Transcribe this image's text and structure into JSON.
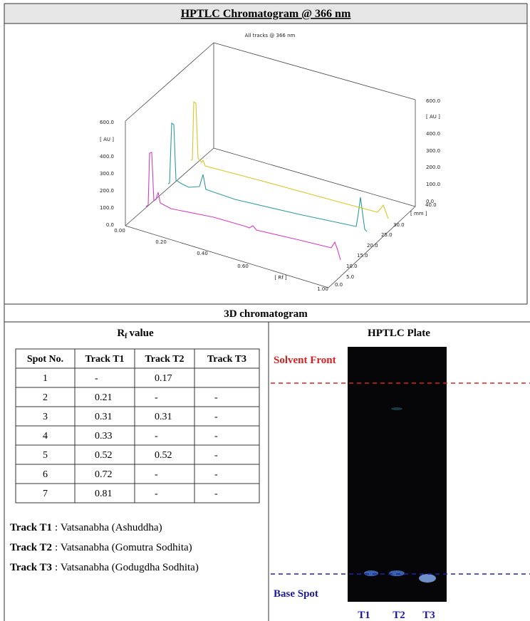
{
  "header": {
    "title": "HPTLC Chromatogram @ 366 nm"
  },
  "chromatogram": {
    "title": "All tracks @ 366 nm",
    "left_axis": [
      "600.0",
      "[ AU ]",
      "400.0",
      "300.0",
      "200.0",
      "100.0",
      "0.0"
    ],
    "right_axis": [
      "600.0",
      "[ AU ]",
      "400.0",
      "300.0",
      "200.0",
      "100.0",
      "0.0"
    ],
    "rf_axis": [
      "0.00",
      "0.20",
      "0.40",
      "0.60",
      "[ Rf ]",
      "1.00"
    ],
    "mm_axis": [
      "0.0",
      "5.0",
      "10.0",
      "15.0",
      "20.0",
      "25.0",
      "30.0",
      "[ mm ]",
      "40.0"
    ]
  },
  "caption": "3D chromatogram",
  "rf_table": {
    "title": {
      "main": "R",
      "subscript": "f",
      "rest": "value"
    },
    "headers": [
      "Spot No.",
      "Track T1",
      "Track T2",
      "Track T3"
    ],
    "rows": [
      [
        "1",
        "-",
        "0.17",
        null
      ],
      [
        "2",
        "0.21",
        "-",
        "-"
      ],
      [
        "3",
        "0.31",
        "0.31",
        "-"
      ],
      [
        "4",
        "0.33",
        "-",
        "-"
      ],
      [
        "5",
        "0.52",
        "0.52",
        "-"
      ],
      [
        "6",
        "0.72",
        "-",
        "-"
      ],
      [
        "7",
        "0.81",
        "-",
        "-"
      ]
    ]
  },
  "tracks": [
    {
      "label": "Track T1",
      "text": ": Vatsanabha (Ashuddha)"
    },
    {
      "label": "Track T2",
      "text": ": Vatsanabha (Gomutra Sodhita)"
    },
    {
      "label": "Track T3",
      "text": ": Vatsanabha (Godugdha Sodhita)"
    }
  ],
  "plate": {
    "title": "HPTLC Plate",
    "solvent_front": "Solvent Front",
    "base_spot": "Base Spot",
    "lanes": [
      "T1",
      "T2",
      "T3"
    ]
  }
}
